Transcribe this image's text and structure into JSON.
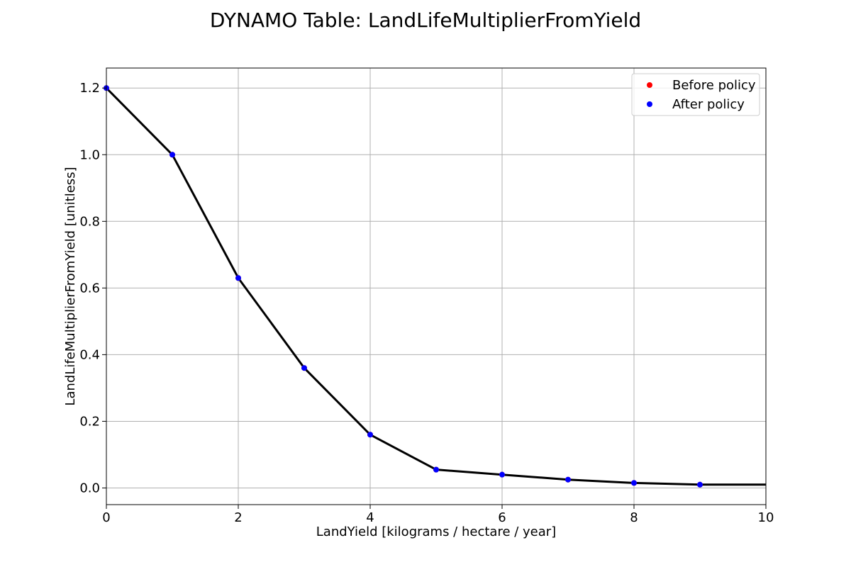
{
  "chart_data": {
    "type": "line",
    "title": "DYNAMO Table: LandLifeMultiplierFromYield",
    "xlabel": "LandYield [kilograms / hectare / year]",
    "ylabel": "LandLifeMultiplierFromYield [unitless]",
    "xlim": [
      0,
      10
    ],
    "ylim": [
      -0.05,
      1.26
    ],
    "xticks": [
      0,
      2,
      4,
      6,
      8,
      10
    ],
    "yticks": [
      0.0,
      0.2,
      0.4,
      0.6,
      0.8,
      1.0,
      1.2
    ],
    "xtick_labels": [
      "0",
      "2",
      "4",
      "6",
      "8",
      "10"
    ],
    "ytick_labels": [
      "0.0",
      "0.2",
      "0.4",
      "0.6",
      "0.8",
      "1.0",
      "1.2"
    ],
    "grid": true,
    "legend_position": "top-right",
    "line": {
      "color": "#000000",
      "x": [
        0,
        1,
        2,
        3,
        4,
        5,
        6,
        7,
        8,
        9,
        10
      ],
      "y": [
        1.2,
        1.0,
        0.63,
        0.36,
        0.16,
        0.055,
        0.04,
        0.025,
        0.015,
        0.01,
        0.01
      ]
    },
    "series": [
      {
        "name": "Before policy",
        "color": "#ff0000",
        "x": [
          0,
          1,
          2,
          3,
          4,
          5,
          6,
          7,
          8,
          9
        ],
        "values": [
          1.2,
          1.0,
          0.63,
          0.36,
          0.16,
          0.055,
          0.04,
          0.025,
          0.015,
          0.01
        ]
      },
      {
        "name": "After policy",
        "color": "#0000ff",
        "x": [
          0,
          1,
          2,
          3,
          4,
          5,
          6,
          7,
          8,
          9
        ],
        "values": [
          1.2,
          1.0,
          0.63,
          0.36,
          0.16,
          0.055,
          0.04,
          0.025,
          0.015,
          0.01
        ]
      }
    ]
  }
}
